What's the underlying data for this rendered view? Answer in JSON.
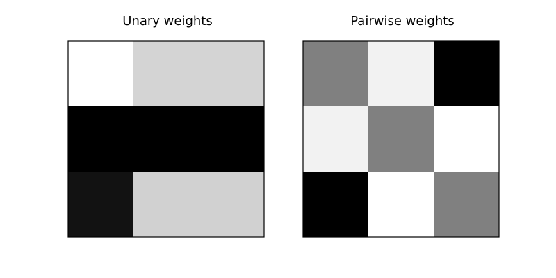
{
  "chart_data": [
    {
      "type": "heatmap",
      "title": "Unary weights",
      "xlabel": "",
      "ylabel": "",
      "rows": 3,
      "cols": 3,
      "colormap": "gray",
      "values": [
        [
          1.0,
          0.83,
          0.83
        ],
        [
          0.0,
          0.0,
          0.0
        ],
        [
          0.07,
          0.82,
          0.82
        ]
      ]
    },
    {
      "type": "heatmap",
      "title": "Pairwise weights",
      "xlabel": "",
      "ylabel": "",
      "rows": 3,
      "cols": 3,
      "colormap": "gray",
      "values": [
        [
          0.5,
          0.95,
          0.0
        ],
        [
          0.95,
          0.5,
          1.0
        ],
        [
          0.0,
          1.0,
          0.5
        ]
      ]
    }
  ]
}
